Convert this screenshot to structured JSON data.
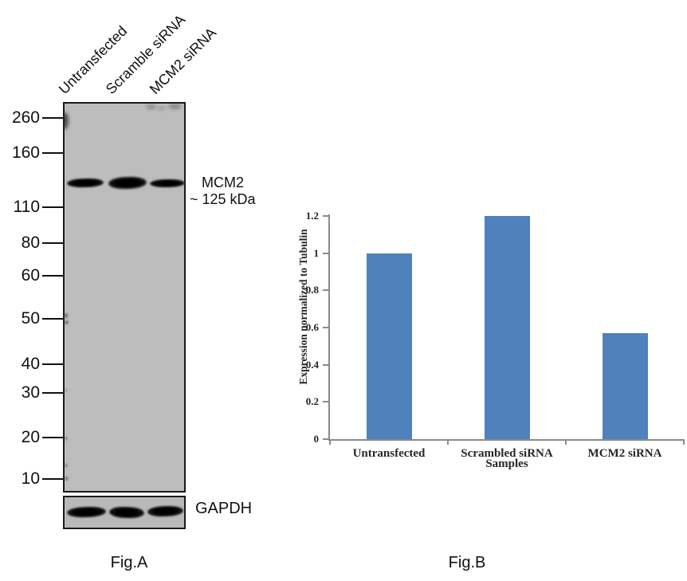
{
  "colors": {
    "bar": "#4F81BD",
    "axis": "#8A8A8A",
    "blot_background": "#BDBDBD",
    "band": "#0D0D0D"
  },
  "figure_a": {
    "caption": "Fig.A",
    "lane_labels": [
      "Untransfected",
      "Scramble siRNA",
      "MCM2 siRNA"
    ],
    "mw_markers": [
      "260",
      "160",
      "110",
      "80",
      "60",
      "50",
      "40",
      "30",
      "20",
      "10"
    ],
    "target_band": {
      "name": "MCM2",
      "size": "~ 125 kDa"
    },
    "loading_control": "GAPDH"
  },
  "figure_b": {
    "caption": "Fig.B"
  },
  "chart_data": {
    "type": "bar",
    "categories": [
      "Untransfected",
      "Scrambled siRNA",
      "MCM2 siRNA"
    ],
    "values": [
      1.0,
      1.2,
      0.57
    ],
    "title": "",
    "xlabel": "Samples",
    "ylabel": "Expression normalized to Tubulin",
    "ylim": [
      0,
      1.2
    ],
    "yticks": [
      0,
      0.2,
      0.4,
      0.6,
      0.8,
      1,
      1.2
    ],
    "bar_color": "#4F81BD",
    "grid": false,
    "legend": false
  }
}
